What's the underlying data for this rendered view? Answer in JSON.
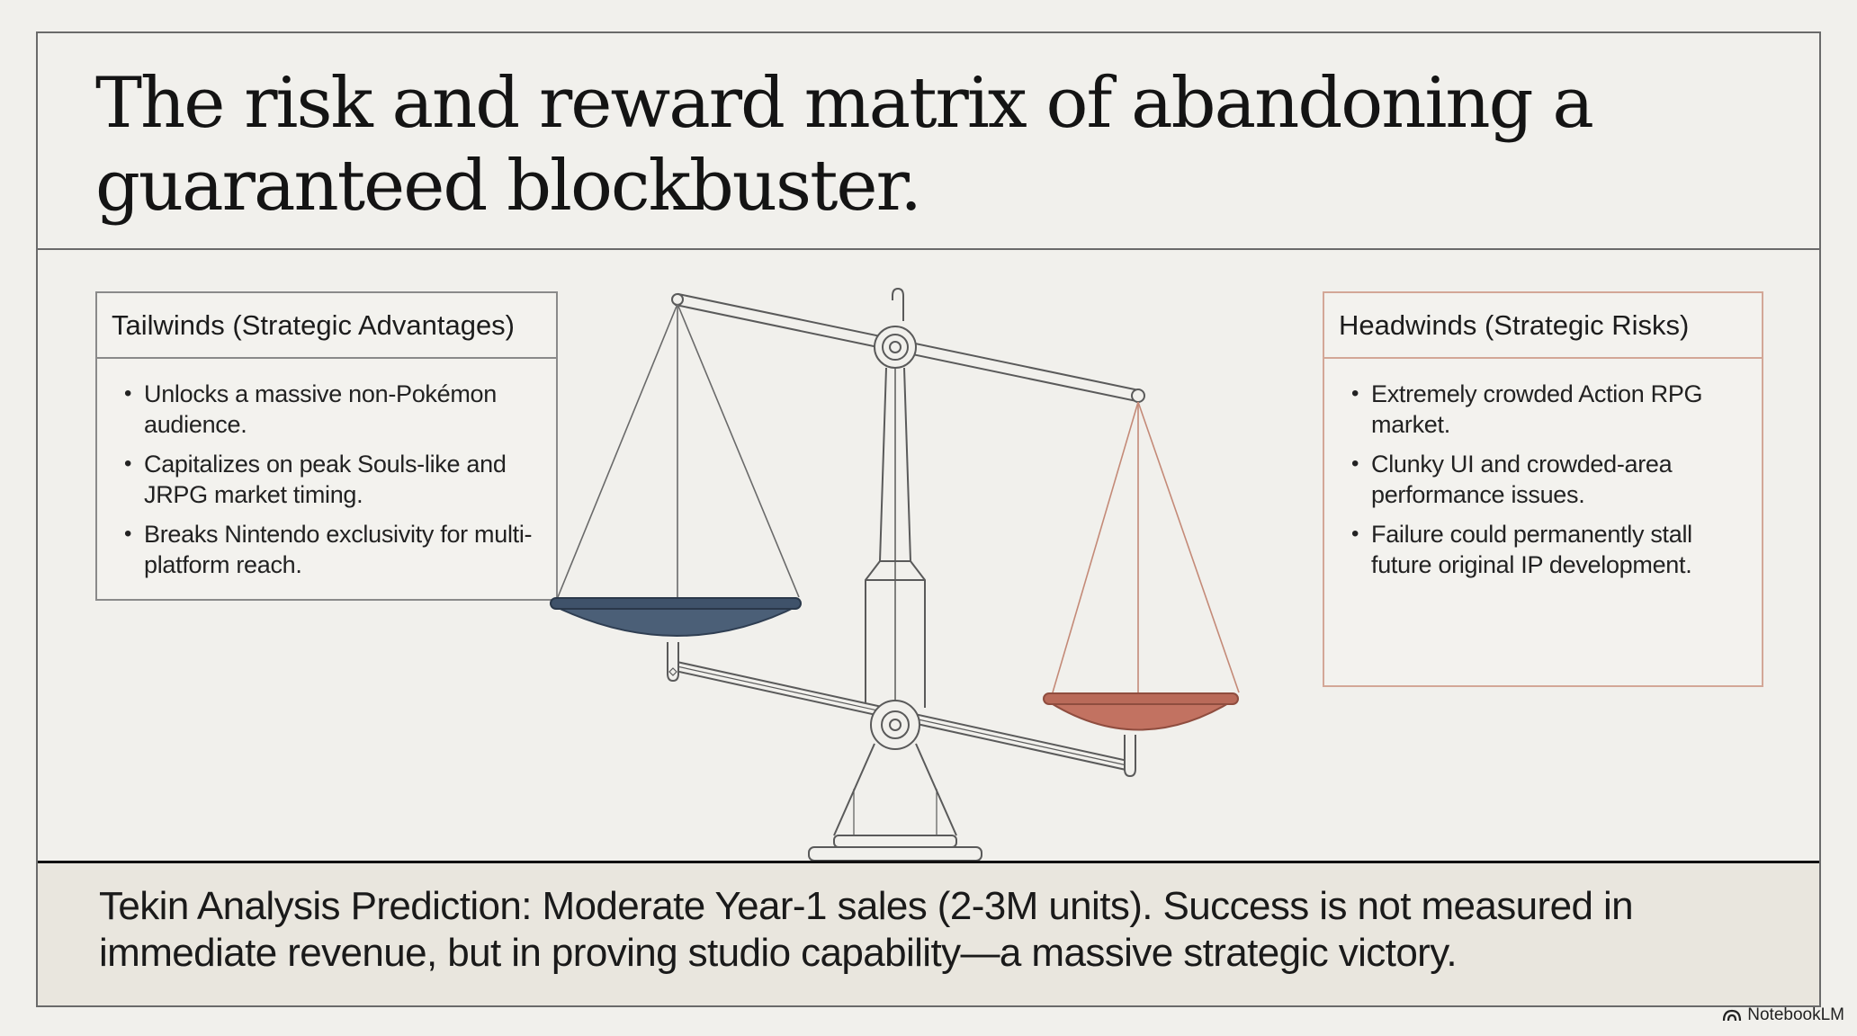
{
  "slide": {
    "title": "The risk and reward matrix of abandoning a guaranteed blockbuster.",
    "tailwinds": {
      "heading": "Tailwinds (Strategic Advantages)",
      "items": [
        "Unlocks a massive non-Pokémon audience.",
        "Capitalizes on peak Souls-like and JRPG market timing.",
        "Breaks Nintendo exclusivity for multi-platform reach."
      ]
    },
    "headwinds": {
      "heading": "Headwinds (Strategic Risks)",
      "items": [
        "Extremely crowded Action RPG market.",
        "Clunky UI and crowded-area performance issues.",
        "Failure could permanently stall future original IP development."
      ]
    },
    "prediction": "Tekin Analysis Prediction: Moderate Year-1 sales (2-3M units). Success is not measured in immediate revenue, but in proving studio capability—a massive strategic victory.",
    "brand": "NotebookLM"
  },
  "colors": {
    "background": "#f1f0ec",
    "tailwinds_pan": "#4b5f77",
    "headwinds_pan": "#c27261",
    "headwinds_border": "#d3a797",
    "prediction_bg": "#e9e6de"
  },
  "icons": {
    "scale": "balance-scale-illustration",
    "brand": "notebooklm-logo-icon"
  }
}
